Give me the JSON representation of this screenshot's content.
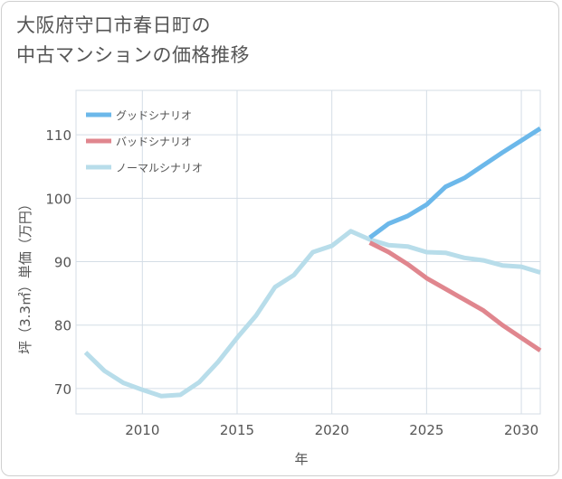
{
  "title_lines": [
    "大阪府守口市春日町の",
    "中古マンションの価格推移"
  ],
  "chart_data": {
    "type": "line",
    "xlabel": "年",
    "ylabel": "坪（3.3㎡）単価（万円）",
    "xlim": [
      2006.5,
      2031
    ],
    "ylim": [
      66,
      117
    ],
    "x_ticks": [
      2010,
      2015,
      2020,
      2025,
      2030
    ],
    "y_ticks": [
      70,
      80,
      90,
      100,
      110
    ],
    "grid": true,
    "legend_position": "top-left",
    "series": [
      {
        "name": "グッドシナリオ",
        "color": "#6cb8ea",
        "x": [
          2022,
          2023,
          2024,
          2025,
          2026,
          2027,
          2028,
          2029,
          2030,
          2031
        ],
        "y": [
          93.8,
          96.0,
          97.2,
          99.0,
          101.8,
          103.2,
          105.2,
          107.2,
          109.1,
          111.0
        ]
      },
      {
        "name": "バッドシナリオ",
        "color": "#e0868e",
        "x": [
          2022,
          2023,
          2024,
          2025,
          2026,
          2027,
          2028,
          2029,
          2030,
          2031
        ],
        "y": [
          93.0,
          91.5,
          89.6,
          87.4,
          85.7,
          84.0,
          82.3,
          80.0,
          78.0,
          76.0
        ]
      },
      {
        "name": "ノーマルシナリオ",
        "color": "#b8ddea",
        "x": [
          2007,
          2008,
          2009,
          2010,
          2011,
          2012,
          2013,
          2014,
          2015,
          2016,
          2017,
          2018,
          2019,
          2020,
          2021,
          2022,
          2023,
          2024,
          2025,
          2026,
          2027,
          2028,
          2029,
          2030,
          2031
        ],
        "y": [
          75.7,
          72.8,
          70.9,
          69.8,
          68.8,
          69.0,
          71.0,
          74.2,
          78.0,
          81.5,
          86.0,
          87.9,
          91.5,
          92.5,
          94.8,
          93.5,
          92.6,
          92.4,
          91.5,
          91.4,
          90.6,
          90.2,
          89.4,
          89.2,
          88.3
        ]
      }
    ]
  }
}
